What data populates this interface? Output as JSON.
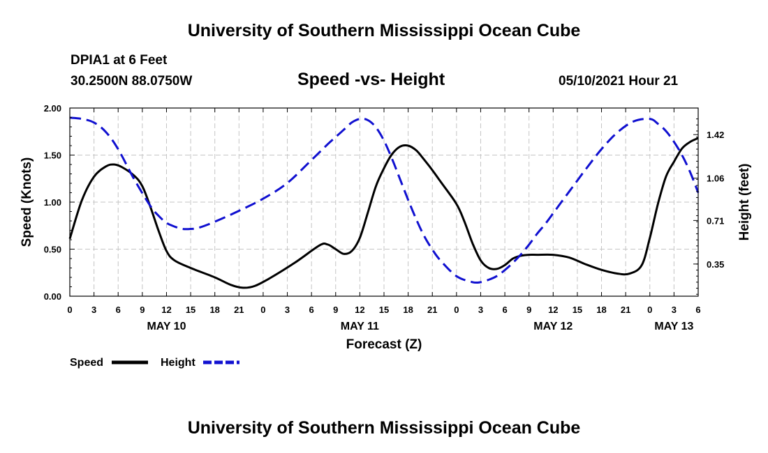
{
  "header": {
    "top_title": "University of Southern Mississippi Ocean Cube",
    "station": "DPIA1 at 6 Feet",
    "coords": "30.2500N  88.0750W",
    "run_time": "05/10/2021 Hour 21",
    "bottom_title": "University of Southern Mississippi Ocean Cube"
  },
  "chart_data": {
    "type": "line",
    "title": "Speed -vs- Height",
    "xlabel": "Forecast (Z)",
    "ylabel": "Speed (Knots)",
    "y2label": "Height (feet)",
    "x_unit": "hours from 00Z May 10",
    "xlim": [
      0,
      78
    ],
    "ylim": [
      0,
      2.0
    ],
    "y2lim": [
      0.084,
      1.64
    ],
    "grid": true,
    "x_tick_values": [
      0,
      3,
      6,
      9,
      12,
      15,
      18,
      21,
      24,
      27,
      30,
      33,
      36,
      39,
      42,
      45,
      48,
      51,
      54,
      57,
      60,
      63,
      66,
      69,
      72,
      75,
      78
    ],
    "x_tick_labels": [
      "0",
      "3",
      "6",
      "9",
      "12",
      "15",
      "18",
      "21",
      "0",
      "3",
      "6",
      "9",
      "12",
      "15",
      "18",
      "21",
      "0",
      "3",
      "6",
      "9",
      "12",
      "15",
      "18",
      "21",
      "0",
      "3",
      "6"
    ],
    "day_labels": [
      {
        "text": "MAY 10",
        "hour": 12
      },
      {
        "text": "MAY 11",
        "hour": 36
      },
      {
        "text": "MAY 12",
        "hour": 60
      },
      {
        "text": "MAY 13",
        "hour": 75
      }
    ],
    "y_ticks": [
      0,
      0.5,
      1.0,
      1.5,
      2.0
    ],
    "y_tick_labels": [
      "0.00",
      "0.50",
      "1.00",
      "1.50",
      "2.00"
    ],
    "y2_ticks": [
      0.35,
      0.71,
      1.06,
      1.42
    ],
    "y2_tick_labels": [
      "0.35",
      "0.71",
      "1.06",
      "1.42"
    ],
    "series": [
      {
        "name": "Speed",
        "axis": "left",
        "color": "#000000",
        "dash": "solid",
        "x": [
          0,
          1.5,
          3,
          4.5,
          5.5,
          6.5,
          8,
          9,
          10,
          11,
          12,
          13,
          15,
          18,
          20,
          21.5,
          23,
          25,
          28,
          31,
          32,
          33,
          34,
          35,
          36,
          37,
          38,
          39,
          40,
          41,
          42,
          43,
          44,
          45,
          46,
          48,
          49,
          50,
          51,
          52,
          53,
          54,
          55,
          56,
          57,
          58,
          60,
          62,
          64,
          66,
          68,
          69.5,
          71,
          72,
          73,
          74,
          75,
          76,
          77,
          78
        ],
        "y": [
          0.61,
          1.02,
          1.27,
          1.38,
          1.4,
          1.37,
          1.28,
          1.17,
          0.95,
          0.7,
          0.48,
          0.38,
          0.3,
          0.2,
          0.12,
          0.09,
          0.11,
          0.2,
          0.36,
          0.54,
          0.55,
          0.5,
          0.45,
          0.48,
          0.62,
          0.89,
          1.17,
          1.36,
          1.51,
          1.59,
          1.6,
          1.55,
          1.45,
          1.34,
          1.22,
          0.98,
          0.79,
          0.56,
          0.38,
          0.3,
          0.29,
          0.33,
          0.4,
          0.43,
          0.44,
          0.44,
          0.44,
          0.41,
          0.34,
          0.28,
          0.24,
          0.24,
          0.33,
          0.62,
          0.98,
          1.27,
          1.43,
          1.57,
          1.64,
          1.68
        ]
      },
      {
        "name": "Height",
        "axis": "right",
        "color": "#1010d0",
        "dash": "dashed",
        "x": [
          0,
          1.5,
          3,
          4.5,
          6,
          8,
          10,
          11,
          12,
          13,
          14,
          15,
          16,
          18,
          21,
          24,
          27,
          30,
          32,
          33,
          34,
          35,
          36,
          37,
          38,
          39,
          40,
          41,
          42,
          43,
          44,
          45,
          46,
          48,
          50,
          51,
          52,
          53,
          54,
          55,
          56,
          57,
          58,
          59,
          60,
          61,
          62,
          63,
          64,
          66,
          68,
          70,
          72,
          73,
          74,
          75,
          76,
          77,
          78
        ],
        "y": [
          1.56,
          1.55,
          1.52,
          1.44,
          1.3,
          1.05,
          0.83,
          0.75,
          0.69,
          0.66,
          0.64,
          0.64,
          0.65,
          0.7,
          0.79,
          0.89,
          1.02,
          1.21,
          1.34,
          1.4,
          1.46,
          1.52,
          1.55,
          1.54,
          1.48,
          1.37,
          1.22,
          1.05,
          0.88,
          0.72,
          0.58,
          0.47,
          0.38,
          0.25,
          0.2,
          0.2,
          0.22,
          0.25,
          0.3,
          0.36,
          0.43,
          0.51,
          0.6,
          0.68,
          0.77,
          0.86,
          0.95,
          1.04,
          1.13,
          1.3,
          1.44,
          1.53,
          1.55,
          1.51,
          1.45,
          1.36,
          1.25,
          1.11,
          0.94
        ]
      }
    ],
    "legend": {
      "position": "bottom-left",
      "entries": [
        {
          "label": "Speed",
          "color": "#000000",
          "dash": "solid"
        },
        {
          "label": "Height",
          "color": "#1010d0",
          "dash": "dashed"
        }
      ]
    }
  }
}
